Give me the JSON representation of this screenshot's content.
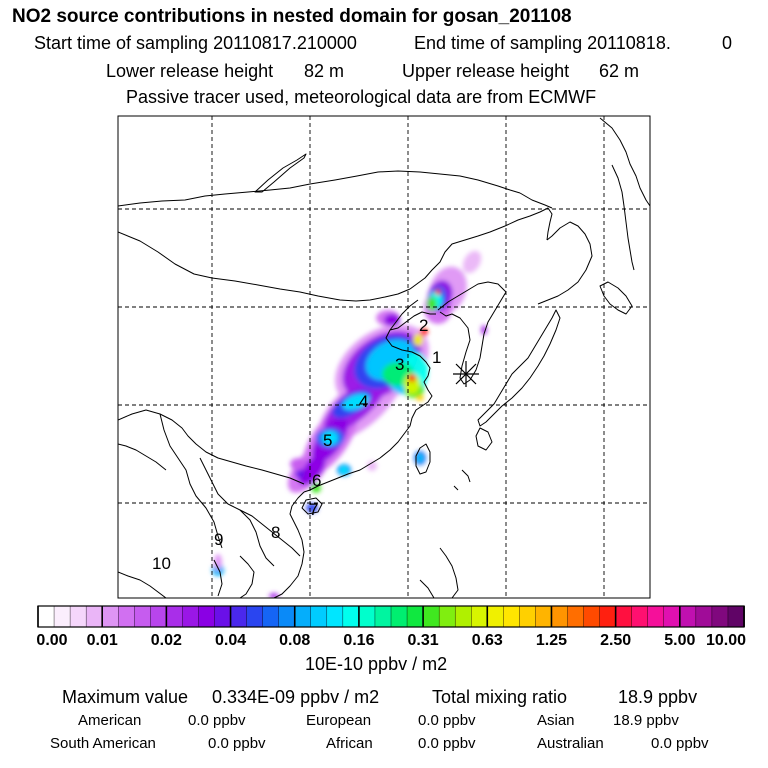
{
  "header": {
    "title": "NO2 source contributions in nested domain for gosan_201108",
    "start_label": "Start time of sampling 20110817.210000",
    "end_label": "End time of sampling 20110818.",
    "end_value": "0",
    "lower_label": "Lower release height",
    "lower_value": "82 m",
    "upper_label": "Upper release height",
    "upper_value": "62 m",
    "note": "Passive tracer used, meteorological data are from ECMWF"
  },
  "chart_data": {
    "type": "heatmap",
    "title": "NO2 source contributions in nested domain for gosan_201108",
    "colorbar_ticks": [
      "0.00",
      "0.01",
      "0.02",
      "0.04",
      "0.08",
      "0.16",
      "0.31",
      "0.63",
      "1.25",
      "2.50",
      "5.00",
      "10.00"
    ],
    "colorbar_colors": [
      "#ffffff",
      "#fbeefd",
      "#f5d6fb",
      "#eab5f7",
      "#de95f4",
      "#d170f1",
      "#c65cef",
      "#b845ec",
      "#a92ee9",
      "#9a17e6",
      "#8a00e4",
      "#6a10e8",
      "#4a28ec",
      "#2a45f0",
      "#1565f5",
      "#0a8af8",
      "#05aefb",
      "#00ccff",
      "#00e6ff",
      "#00ffee",
      "#00ffcc",
      "#00f5a0",
      "#00ee70",
      "#10e840",
      "#40e820",
      "#80ee10",
      "#b0f000",
      "#d8f500",
      "#f0f000",
      "#ffe600",
      "#ffd000",
      "#ffb400",
      "#ff9400",
      "#ff6e00",
      "#ff4a00",
      "#ff2010",
      "#ff1040",
      "#ff1070",
      "#f5109a",
      "#e010b0",
      "#c010b0",
      "#a00c98",
      "#80087e",
      "#600466"
    ],
    "colorbar_unit": "10E-10 ppbv / m2",
    "sources": [
      "1",
      "2",
      "3",
      "4",
      "5",
      "6",
      "7",
      "8",
      "9",
      "10"
    ],
    "receptor_marker": "*"
  },
  "stats": {
    "max_label": "Maximum value",
    "max_value": "0.334E-09 ppbv / m2",
    "total_label": "Total mixing ratio",
    "total_value": "18.9 ppbv"
  },
  "regions": [
    {
      "name": "American",
      "value": "0.0 ppbv"
    },
    {
      "name": "European",
      "value": "0.0 ppbv"
    },
    {
      "name": "Asian",
      "value": "18.9 ppbv"
    },
    {
      "name": "South American",
      "value": "0.0 ppbv"
    },
    {
      "name": "African",
      "value": "0.0 ppbv"
    },
    {
      "name": "Australian",
      "value": "0.0 ppbv"
    }
  ]
}
